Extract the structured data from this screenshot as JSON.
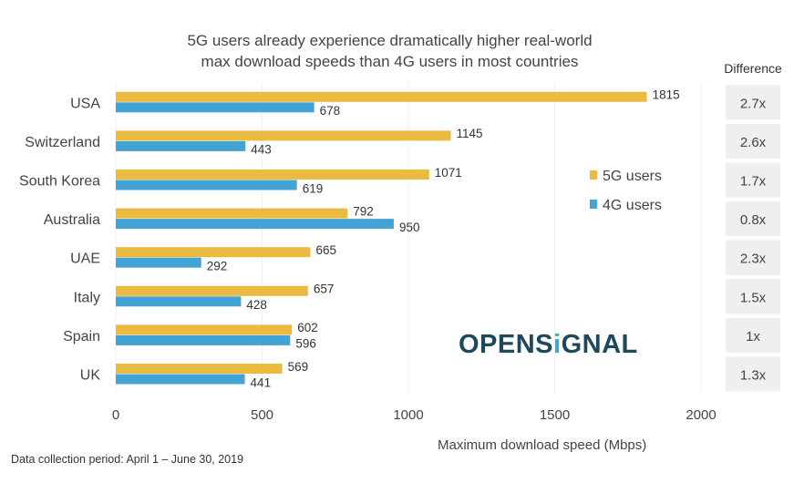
{
  "chart_data": {
    "type": "bar",
    "orientation": "horizontal",
    "title": "5G users already experience dramatically higher real-world max download speeds than 4G users in most countries",
    "title_lines": [
      "5G users already experience dramatically higher real-world",
      "max download speeds than 4G users in most countries"
    ],
    "categories": [
      "USA",
      "Switzerland",
      "South Korea",
      "Australia",
      "UAE",
      "Italy",
      "Spain",
      "UK"
    ],
    "series": [
      {
        "name": "5G users",
        "color": "#EBBB40",
        "values": [
          1815,
          1145,
          1071,
          792,
          665,
          657,
          602,
          569
        ]
      },
      {
        "name": "4G users",
        "color": "#44A3D5",
        "values": [
          678,
          443,
          619,
          950,
          292,
          428,
          596,
          441
        ]
      }
    ],
    "xlabel": "Maximum download speed (Mbps)",
    "ylabel": "",
    "xlim": [
      0,
      2000
    ],
    "xticks": [
      "0",
      "500",
      "1000",
      "1500",
      "2000"
    ],
    "grid": true,
    "legend_position": "right",
    "difference_header": "Difference",
    "difference": [
      "2.7x",
      "2.6x",
      "1.7x",
      "0.8x",
      "2.3x",
      "1.5x",
      "1x",
      "1.3x"
    ]
  },
  "footnote": "Data collection period: April 1 – June 30, 2019",
  "logo_text": "OPENSIGNAL"
}
